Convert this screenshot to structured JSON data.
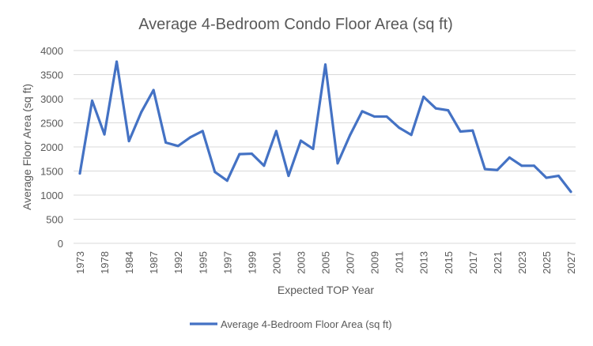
{
  "chart_data": {
    "type": "line",
    "title": "Average 4-Bedroom Condo Floor Area (sq ft)",
    "xlabel": "Expected TOP Year",
    "ylabel": "Average Floor Area (sq ft)",
    "ylim": [
      0,
      4000
    ],
    "yticks": [
      0,
      500,
      1000,
      1500,
      2000,
      2500,
      3000,
      3500,
      4000
    ],
    "grid": true,
    "legend_position": "bottom",
    "x_tick_labels": [
      "1973",
      "1978",
      "1984",
      "1987",
      "1992",
      "1995",
      "1997",
      "1999",
      "2001",
      "2003",
      "2005",
      "2007",
      "2009",
      "2011",
      "2013",
      "2015",
      "2017",
      "2021",
      "2023",
      "2025",
      "2027"
    ],
    "series": [
      {
        "name": "Average 4-Bedroom Floor Area (sq ft)",
        "color": "#4472C4",
        "values": [
          1450,
          2960,
          2260,
          3770,
          2120,
          2720,
          3180,
          2090,
          2020,
          2200,
          2330,
          1480,
          1300,
          1850,
          1860,
          1610,
          2330,
          1400,
          2130,
          1960,
          3710,
          1660,
          2240,
          2740,
          2630,
          2630,
          2400,
          2250,
          3040,
          2800,
          2760,
          2320,
          2340,
          1540,
          1520,
          1780,
          1610,
          1610,
          1360,
          1400,
          1070
        ]
      }
    ]
  }
}
